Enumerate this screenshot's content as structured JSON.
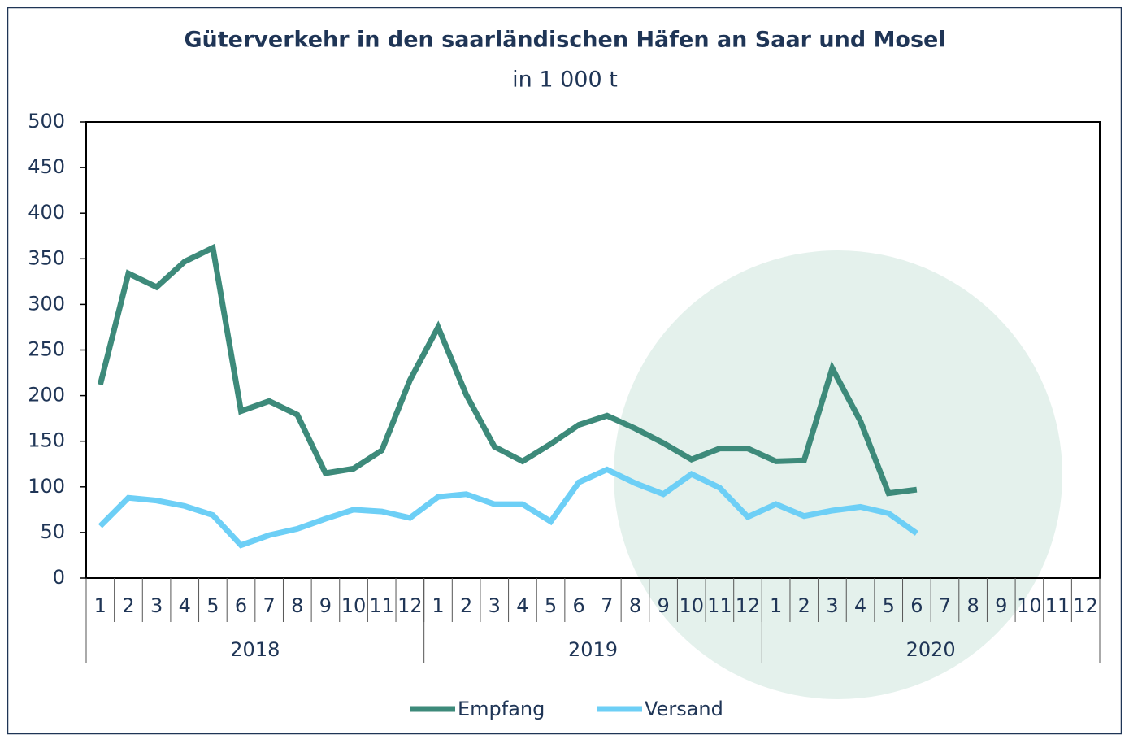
{
  "chart_data": {
    "type": "line",
    "title": "Güterverkehr in den saarländischen Häfen an Saar und Mosel",
    "subtitle": "in 1 000 t",
    "categories": [
      "1",
      "2",
      "3",
      "4",
      "5",
      "6",
      "7",
      "8",
      "9",
      "10",
      "11",
      "12",
      "1",
      "2",
      "3",
      "4",
      "5",
      "6",
      "7",
      "8",
      "9",
      "10",
      "11",
      "12",
      "1",
      "2",
      "3",
      "4",
      "5",
      "6",
      "7",
      "8",
      "9",
      "10",
      "11",
      "12"
    ],
    "groups": [
      "2018",
      "2019",
      "2020"
    ],
    "series": [
      {
        "name": "Empfang",
        "color": "#3d8a7a",
        "values": [
          212,
          334,
          319,
          347,
          362,
          183,
          194,
          179,
          115,
          120,
          140,
          217,
          275,
          201,
          144,
          128,
          147,
          168,
          178,
          164,
          148,
          130,
          142,
          142,
          128,
          129,
          230,
          172,
          93,
          97,
          null,
          null,
          null,
          null,
          null,
          null
        ]
      },
      {
        "name": "Versand",
        "color": "#6dcff6",
        "values": [
          57,
          88,
          85,
          79,
          69,
          36,
          47,
          54,
          65,
          75,
          73,
          66,
          89,
          92,
          81,
          81,
          62,
          105,
          119,
          104,
          92,
          114,
          99,
          67,
          81,
          68,
          74,
          78,
          71,
          49,
          null,
          null,
          null,
          null,
          null,
          null
        ]
      }
    ],
    "ylim": [
      0,
      500
    ],
    "yticks": [
      0,
      50,
      100,
      150,
      200,
      250,
      300,
      350,
      400,
      450,
      500
    ],
    "grid": false,
    "legend": "bottom"
  }
}
